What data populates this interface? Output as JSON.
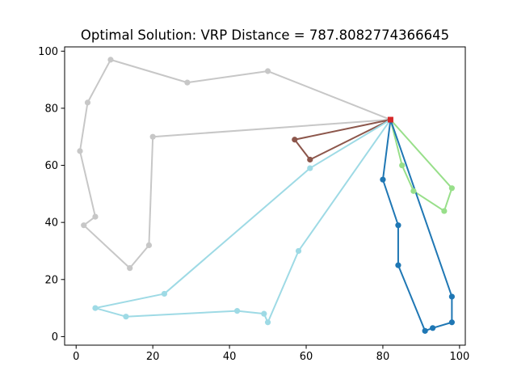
{
  "chart_data": {
    "type": "line",
    "title": "Optimal Solution: VRP Distance = 787.8082774366645",
    "xlabel": "",
    "ylabel": "",
    "xlim": [
      -3,
      101.5
    ],
    "ylim": [
      -3,
      101.5
    ],
    "xticks": [
      0,
      20,
      40,
      60,
      80,
      100
    ],
    "yticks": [
      0,
      20,
      40,
      60,
      80,
      100
    ],
    "grid": false,
    "depot": {
      "x": 82,
      "y": 76,
      "color": "#d62728"
    },
    "series": [
      {
        "color": "#c7c7c7",
        "points": [
          [
            82,
            76
          ],
          [
            50,
            93
          ],
          [
            29,
            89
          ],
          [
            9,
            97
          ],
          [
            3,
            82
          ],
          [
            1,
            65
          ],
          [
            5,
            42
          ],
          [
            2,
            39
          ],
          [
            14,
            24
          ],
          [
            19,
            32
          ],
          [
            20,
            70
          ],
          [
            82,
            76
          ]
        ]
      },
      {
        "color": "#8c564b",
        "points": [
          [
            82,
            76
          ],
          [
            57,
            69
          ],
          [
            61,
            62
          ],
          [
            82,
            76
          ]
        ]
      },
      {
        "color": "#9edae5",
        "points": [
          [
            82,
            76
          ],
          [
            61,
            59
          ],
          [
            23,
            15
          ],
          [
            5,
            10
          ],
          [
            13,
            7
          ],
          [
            42,
            9
          ],
          [
            49,
            8
          ],
          [
            50,
            5
          ],
          [
            58,
            30
          ],
          [
            82,
            76
          ]
        ]
      },
      {
        "color": "#98df8a",
        "points": [
          [
            82,
            76
          ],
          [
            85,
            60
          ],
          [
            88,
            51
          ],
          [
            96,
            44
          ],
          [
            98,
            52
          ],
          [
            82,
            76
          ]
        ]
      },
      {
        "color": "#1f77b4",
        "points": [
          [
            82,
            76
          ],
          [
            80,
            55
          ],
          [
            84,
            39
          ],
          [
            84,
            25
          ],
          [
            91,
            2
          ],
          [
            93,
            3
          ],
          [
            98,
            5
          ],
          [
            98,
            14
          ],
          [
            82,
            76
          ]
        ]
      }
    ]
  }
}
